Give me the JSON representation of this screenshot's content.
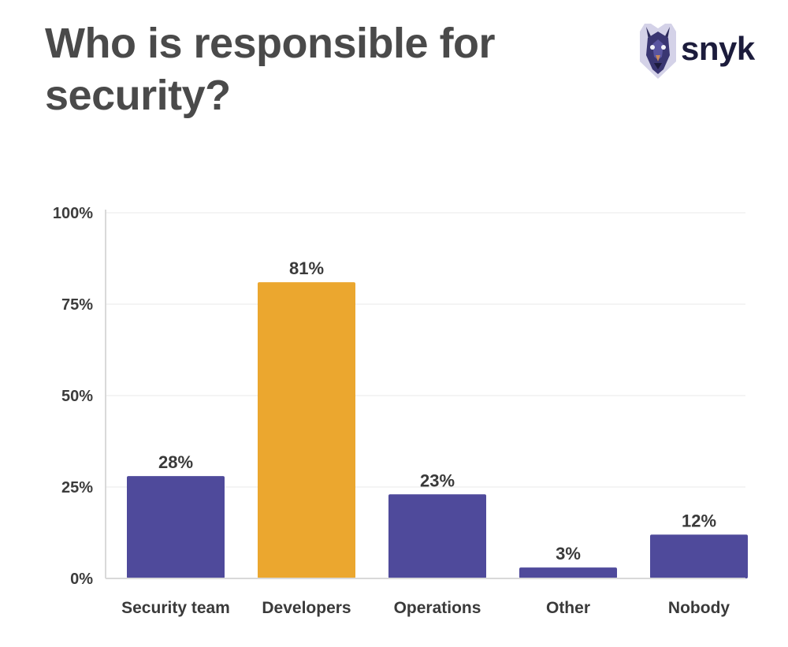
{
  "header": {
    "title": "Who is responsible for security?",
    "brand": "snyk"
  },
  "colors": {
    "primary_bar": "#4f4a9b",
    "highlight_bar": "#eba72f",
    "axis": "#d9d9d9",
    "gridline": "#f0f0f0"
  },
  "chart_data": {
    "type": "bar",
    "title": "Who is responsible for security?",
    "categories": [
      "Security team",
      "Developers",
      "Operations",
      "Other",
      "Nobody"
    ],
    "values": [
      28,
      81,
      23,
      3,
      12
    ],
    "value_labels": [
      "28%",
      "81%",
      "23%",
      "3%",
      "12%"
    ],
    "highlight_category": "Developers",
    "ylim": [
      0,
      100
    ],
    "yticks": [
      0,
      25,
      50,
      75,
      100
    ],
    "ytick_labels": [
      "0%",
      "25%",
      "50%",
      "75%",
      "100%"
    ],
    "grid": true,
    "xlabel": "",
    "ylabel": ""
  }
}
